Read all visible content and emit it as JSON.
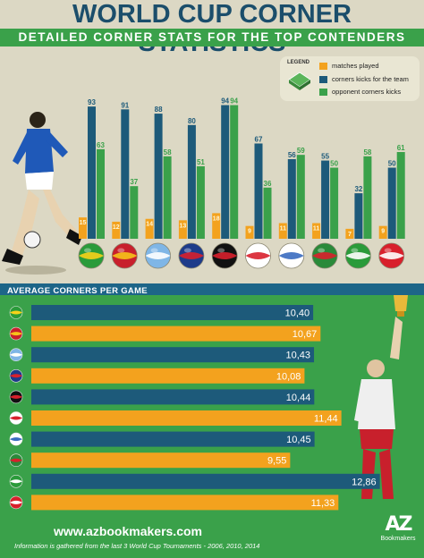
{
  "header": {
    "title": "WORLD CUP CORNER STATISTICS",
    "subtitle": "DETAILED CORNER STATS FOR THE TOP CONTENDERS"
  },
  "colors": {
    "matches": "#f3a21e",
    "team_corners": "#1d5a7a",
    "opponent_corners": "#3aa14a",
    "background": "#dcd8c4"
  },
  "legend": {
    "title": "LEGEND",
    "items": [
      "matches played",
      "corners kicks for the team",
      "opponent corners kicks"
    ]
  },
  "section": {
    "average_title": "AVERAGE CORNERS PER GAME"
  },
  "footer": {
    "website": "www.azbookmakers.com",
    "note": "Information is gathered from the last 3 World Cup Tournaments - 2006, 2010, 2014",
    "logo_mark": "AZ",
    "logo_brand": "Bookmakers"
  },
  "chart_data": [
    {
      "type": "bar",
      "title": "WORLD CUP CORNER STATISTICS",
      "categories": [
        "Brazil",
        "Spain",
        "Argentina",
        "France",
        "Germany",
        "England",
        "Uruguay",
        "Portugal",
        "Nigeria",
        "Switzerland"
      ],
      "series": [
        {
          "name": "matches played",
          "values": [
            15,
            12,
            14,
            13,
            18,
            9,
            11,
            11,
            7,
            9
          ]
        },
        {
          "name": "corners kicks for the team",
          "values": [
            93,
            91,
            88,
            80,
            94,
            67,
            56,
            55,
            32,
            50
          ]
        },
        {
          "name": "opponent corners kicks",
          "values": [
            63,
            37,
            58,
            51,
            94,
            36,
            59,
            50,
            58,
            61
          ]
        }
      ],
      "flag_icons": [
        "brazil-flag-icon",
        "spain-flag-icon",
        "argentina-flag-icon",
        "france-flag-icon",
        "germany-flag-icon",
        "england-flag-icon",
        "uruguay-flag-icon",
        "portugal-flag-icon",
        "nigeria-flag-icon",
        "switzerland-flag-icon"
      ]
    },
    {
      "type": "bar",
      "title": "AVERAGE CORNERS PER GAME",
      "categories": [
        "Brazil",
        "Spain",
        "Argentina",
        "France",
        "Germany",
        "England",
        "Uruguay",
        "Portugal",
        "Nigeria",
        "Switzerland"
      ],
      "values": [
        10.4,
        10.67,
        10.43,
        10.08,
        10.44,
        11.44,
        10.45,
        9.55,
        12.86,
        11.33
      ],
      "labels": [
        "10,40",
        "10,67",
        "10,43",
        "10,08",
        "10,44",
        "11,44",
        "10,45",
        "9,55",
        "12,86",
        "11,33"
      ]
    }
  ]
}
